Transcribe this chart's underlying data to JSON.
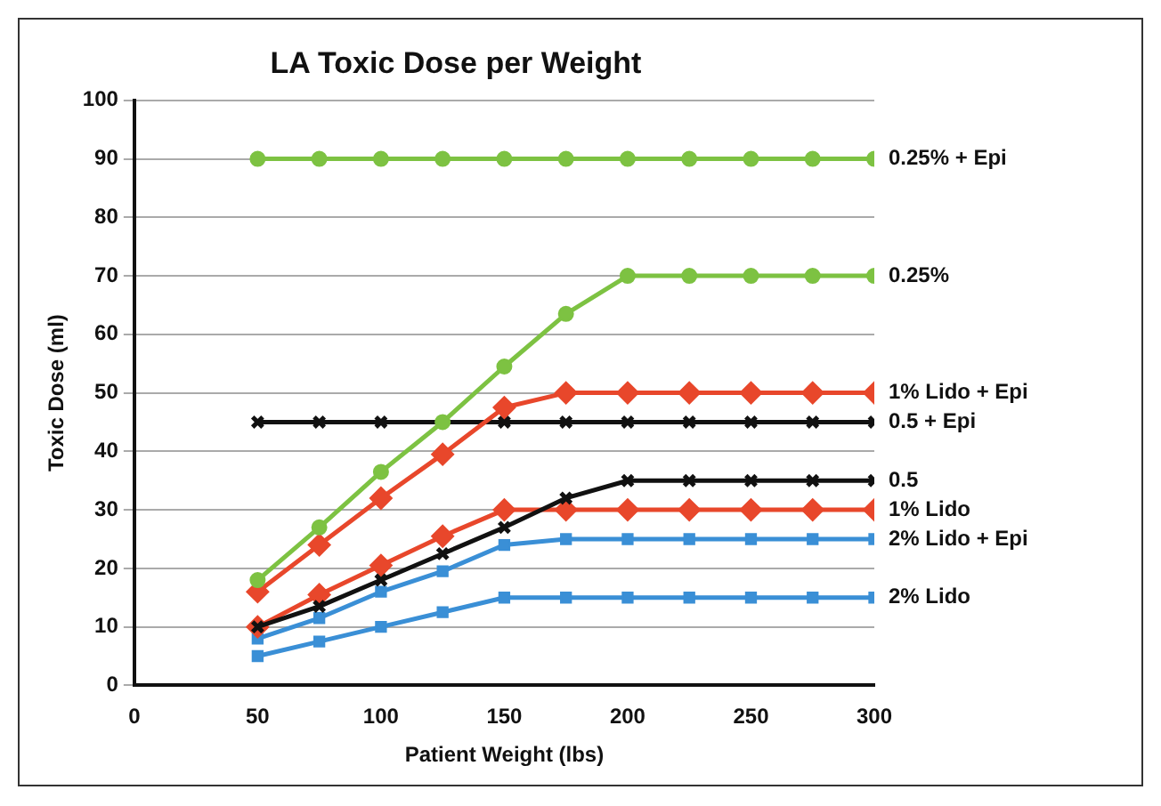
{
  "chart_data": {
    "type": "line",
    "title": "LA Toxic Dose per Weight",
    "xlabel": "Patient Weight (lbs)",
    "ylabel": "Toxic Dose (ml)",
    "x": [
      50,
      75,
      100,
      125,
      150,
      175,
      200,
      225,
      250,
      275,
      300
    ],
    "xlim": [
      0,
      300
    ],
    "xticks": [
      0,
      50,
      100,
      150,
      200,
      250,
      300
    ],
    "ylim": [
      0,
      100
    ],
    "yticks": [
      0,
      10,
      20,
      30,
      40,
      50,
      60,
      70,
      80,
      90,
      100
    ],
    "grid": "y",
    "legend": false,
    "series": [
      {
        "name": "0.25% + Epi",
        "color": "#7dc242",
        "marker": "circle",
        "values": [
          90,
          90,
          90,
          90,
          90,
          90,
          90,
          90,
          90,
          90,
          90
        ]
      },
      {
        "name": "0.25%",
        "color": "#7dc242",
        "marker": "circle",
        "values": [
          18,
          27,
          36.5,
          45,
          54.5,
          63.5,
          70,
          70,
          70,
          70,
          70
        ]
      },
      {
        "name": "1% Lido + Epi",
        "color": "#e8472b",
        "marker": "diamond",
        "values": [
          16,
          24,
          32,
          39.5,
          47.5,
          50,
          50,
          50,
          50,
          50,
          50
        ]
      },
      {
        "name": "0.5 + Epi",
        "color": "#111111",
        "marker": "cross",
        "values": [
          45,
          45,
          45,
          45,
          45,
          45,
          45,
          45,
          45,
          45,
          45
        ]
      },
      {
        "name": "0.5",
        "color": "#111111",
        "marker": "cross",
        "values": [
          10,
          13.5,
          18,
          22.5,
          27,
          32,
          35,
          35,
          35,
          35,
          35
        ]
      },
      {
        "name": "1% Lido",
        "color": "#e8472b",
        "marker": "diamond",
        "values": [
          10,
          15.5,
          20.5,
          25.5,
          30,
          30,
          30,
          30,
          30,
          30,
          30
        ]
      },
      {
        "name": "2% Lido + Epi",
        "color": "#3a8fd6",
        "marker": "square",
        "values": [
          8,
          11.5,
          16,
          19.5,
          24,
          25,
          25,
          25,
          25,
          25,
          25
        ]
      },
      {
        "name": "2% Lido",
        "color": "#3a8fd6",
        "marker": "square",
        "values": [
          5,
          7.5,
          10,
          12.5,
          15,
          15,
          15,
          15,
          15,
          15,
          15
        ]
      }
    ]
  }
}
